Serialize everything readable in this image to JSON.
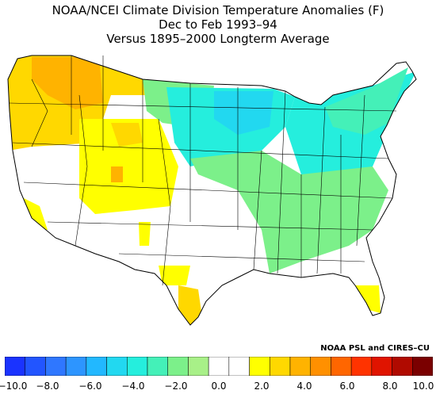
{
  "title_lines": [
    "NOAA/NCEI Climate Division Temperature Anomalies (F)",
    "Dec to Feb 1993–94",
    "Versus 1895–2000 Longterm Average"
  ],
  "credit": "NOAA PSL and CIRES–CU",
  "legend": {
    "colors": [
      "#1a33ff",
      "#2255ff",
      "#2f77ff",
      "#2d95ff",
      "#22b8ff",
      "#22d8f0",
      "#25eedd",
      "#44f0b8",
      "#7cf08a",
      "#a8f088",
      "#ffffff",
      "#ffffff",
      "#ffff00",
      "#ffd800",
      "#ffb300",
      "#ff9000",
      "#ff6600",
      "#ff3300",
      "#e01400",
      "#b00a00",
      "#7a0000"
    ],
    "tick_labels": [
      "−10.0",
      "−8.0",
      "−6.0",
      "−4.0",
      "−2.0",
      "0.0",
      "2.0",
      "4.0",
      "6.0",
      "8.0",
      "10.0"
    ]
  }
}
